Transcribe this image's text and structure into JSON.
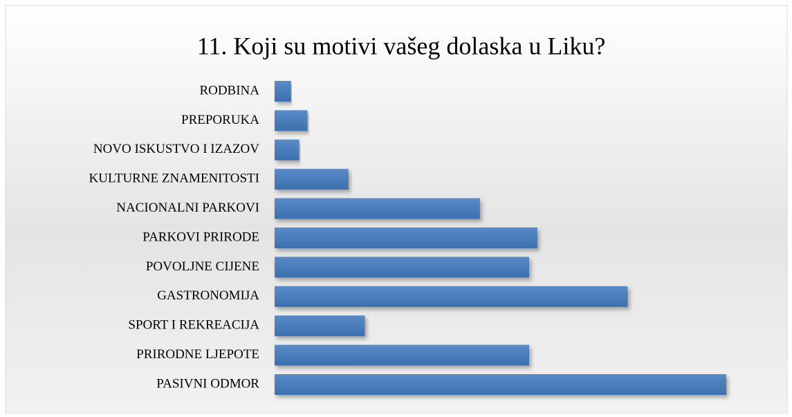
{
  "chart_data": {
    "type": "bar",
    "orientation": "horizontal",
    "title": "11. Koji su motivi vašeg dolaska u Liku?",
    "categories": [
      "RODBINA",
      "PREPORUKA",
      "NOVO ISKUSTVO I IZAZOV",
      "KULTURNE ZNAMENITOSTI",
      "NACIONALNI PARKOVI",
      "PARKOVI PRIRODE",
      "POVOLJNE CIJENE",
      "GASTRONOMIJA",
      "SPORT I  REKREACIJA",
      "PRIRODNE LJEPOTE",
      "PASIVNI ODMOR"
    ],
    "values": [
      2,
      4,
      3,
      9,
      25,
      32,
      31,
      43,
      11,
      31,
      55
    ],
    "color": "#4a7ebb"
  }
}
